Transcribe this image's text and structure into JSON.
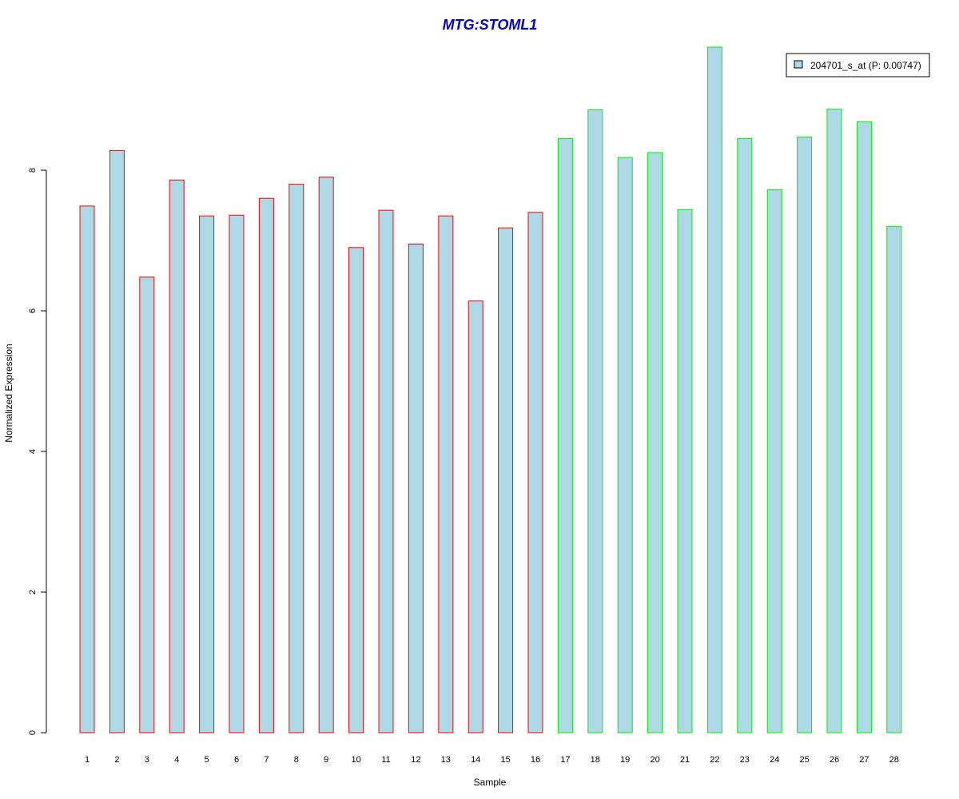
{
  "colors": {
    "title": "#0000cc",
    "bar_fill": "#add8e6",
    "group1_border": "#ff0000",
    "group2_border": "#00ee00",
    "axis": "#000000"
  },
  "chart_data": {
    "type": "bar",
    "title": "MTG:STOML1",
    "xlabel": "Sample",
    "ylabel": "Normalized Expression",
    "ylim": [
      0,
      9.75
    ],
    "yticks": [
      0,
      2,
      4,
      6,
      8
    ],
    "grid": false,
    "legend": {
      "position": "top-right",
      "entries": [
        "204701_s_at (P: 0.00747)"
      ]
    },
    "categories": [
      "1",
      "2",
      "3",
      "4",
      "5",
      "6",
      "7",
      "8",
      "9",
      "10",
      "11",
      "12",
      "13",
      "14",
      "15",
      "16",
      "17",
      "18",
      "19",
      "20",
      "21",
      "22",
      "23",
      "24",
      "25",
      "26",
      "27",
      "28"
    ],
    "series": [
      {
        "name": "204701_s_at (P: 0.00747)",
        "values": [
          7.49,
          8.28,
          6.48,
          7.86,
          7.35,
          7.36,
          7.6,
          7.8,
          7.9,
          6.9,
          7.43,
          6.95,
          7.35,
          6.14,
          7.18,
          7.4,
          8.45,
          8.86,
          8.18,
          8.25,
          7.44,
          9.75,
          8.45,
          7.72,
          8.47,
          8.87,
          8.69,
          7.2
        ]
      }
    ],
    "groups": [
      {
        "samples": [
          1,
          16
        ],
        "border_color": "#ff0000"
      },
      {
        "samples": [
          17,
          28
        ],
        "border_color": "#00ee00"
      }
    ]
  }
}
